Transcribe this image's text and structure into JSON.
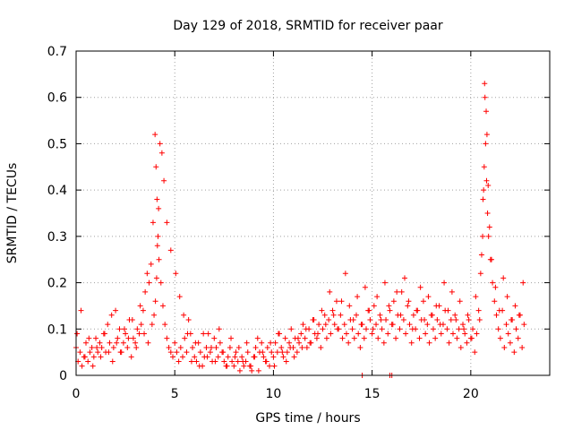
{
  "chart_data": {
    "type": "scatter",
    "title": "Day 129 of 2018, SRMTID for receiver paar",
    "xlabel": "GPS time / hours",
    "ylabel": "SRMTID / TECUs",
    "xlim": [
      0,
      24
    ],
    "ylim": [
      0,
      0.7
    ],
    "x_ticks": [
      0,
      5,
      10,
      15,
      20
    ],
    "x_tick_labels": [
      "0",
      "5",
      "10",
      "15",
      "20"
    ],
    "y_ticks": [
      0,
      0.1,
      0.2,
      0.3,
      0.4,
      0.5,
      0.6,
      0.7
    ],
    "y_tick_labels": [
      "0",
      "0.1",
      "0.2",
      "0.3",
      "0.4",
      "0.5",
      "0.6",
      "0.7"
    ],
    "grid": true,
    "marker": "+",
    "series": [
      {
        "name": "SRMTID",
        "color": "#ff0000",
        "x": [
          0.0,
          0.1,
          0.2,
          0.3,
          0.4,
          0.5,
          0.6,
          0.7,
          0.8,
          0.9,
          1.0,
          1.1,
          1.2,
          1.3,
          1.4,
          1.5,
          1.6,
          1.7,
          1.8,
          1.9,
          2.0,
          2.1,
          2.2,
          2.3,
          2.4,
          2.5,
          2.6,
          2.7,
          2.8,
          2.9,
          3.0,
          3.1,
          3.2,
          3.3,
          3.4,
          3.5,
          3.6,
          3.7,
          3.8,
          3.9,
          4.0,
          4.05,
          4.1,
          4.15,
          4.2,
          4.3,
          4.4,
          4.5,
          4.6,
          4.7,
          4.8,
          4.9,
          5.0,
          5.1,
          5.2,
          5.3,
          5.4,
          5.5,
          5.6,
          5.7,
          5.8,
          5.9,
          6.0,
          6.1,
          6.2,
          6.3,
          6.4,
          6.5,
          6.6,
          6.7,
          6.8,
          6.9,
          7.0,
          7.1,
          7.2,
          7.3,
          7.4,
          7.5,
          7.6,
          7.7,
          7.8,
          7.9,
          8.0,
          8.1,
          8.2,
          8.3,
          8.4,
          8.5,
          8.6,
          8.7,
          8.8,
          8.9,
          9.0,
          9.1,
          9.2,
          9.3,
          9.4,
          9.5,
          9.6,
          9.7,
          9.8,
          9.9,
          10.0,
          10.1,
          10.2,
          10.3,
          10.4,
          10.5,
          10.6,
          10.7,
          10.8,
          10.9,
          11.0,
          11.1,
          11.2,
          11.3,
          11.4,
          11.5,
          11.6,
          11.7,
          11.8,
          11.9,
          12.0,
          12.1,
          12.2,
          12.3,
          12.4,
          12.5,
          12.6,
          12.7,
          12.8,
          12.9,
          13.0,
          13.1,
          13.2,
          13.3,
          13.4,
          13.5,
          13.6,
          13.7,
          13.8,
          13.9,
          14.0,
          14.1,
          14.2,
          14.3,
          14.4,
          14.5,
          14.6,
          14.7,
          14.8,
          14.9,
          15.0,
          15.1,
          15.2,
          15.3,
          15.4,
          15.5,
          15.6,
          15.7,
          15.8,
          15.9,
          16.0,
          16.1,
          16.2,
          16.3,
          16.4,
          16.5,
          16.6,
          16.7,
          16.8,
          16.9,
          17.0,
          17.1,
          17.2,
          17.3,
          17.4,
          17.5,
          17.6,
          17.7,
          17.8,
          17.9,
          18.0,
          18.1,
          18.2,
          18.3,
          18.4,
          18.5,
          18.6,
          18.7,
          18.8,
          18.9,
          19.0,
          19.1,
          19.2,
          19.3,
          19.4,
          19.5,
          19.6,
          19.7,
          19.8,
          19.9,
          20.0,
          20.1,
          20.2,
          20.3,
          20.4,
          20.5,
          20.6,
          20.65,
          20.7,
          20.75,
          20.8,
          20.85,
          20.9,
          21.0,
          21.1,
          21.2,
          21.3,
          21.4,
          21.5,
          21.6,
          21.7,
          21.8,
          21.9,
          22.0,
          22.1,
          22.2,
          22.3,
          22.4,
          22.5,
          22.6,
          22.7,
          0.05,
          0.25,
          0.45,
          0.65,
          0.85,
          1.05,
          1.25,
          1.45,
          1.65,
          1.85,
          2.05,
          2.25,
          2.45,
          2.65,
          2.85,
          3.05,
          3.25,
          3.45,
          3.65,
          3.85,
          3.95,
          4.02,
          4.08,
          4.12,
          4.18,
          4.25,
          4.35,
          4.45,
          4.6,
          4.8,
          5.05,
          5.25,
          5.45,
          5.65,
          5.85,
          6.05,
          6.25,
          6.45,
          6.65,
          6.85,
          7.05,
          7.25,
          7.45,
          7.65,
          7.85,
          8.05,
          8.25,
          8.45,
          8.65,
          8.85,
          9.05,
          9.25,
          9.45,
          9.65,
          9.85,
          10.05,
          10.25,
          10.45,
          10.65,
          10.85,
          11.05,
          11.25,
          11.45,
          11.65,
          11.85,
          12.05,
          12.25,
          12.45,
          12.65,
          12.85,
          13.05,
          13.25,
          13.45,
          13.65,
          13.85,
          14.05,
          14.25,
          14.45,
          14.65,
          14.85,
          15.05,
          15.25,
          15.45,
          15.65,
          15.85,
          16.05,
          16.25,
          16.45,
          16.65,
          16.85,
          17.05,
          17.25,
          17.45,
          17.65,
          17.85,
          18.05,
          18.25,
          18.45,
          18.65,
          18.85,
          19.05,
          19.25,
          19.45,
          19.65,
          19.85,
          20.05,
          20.25,
          20.45,
          20.55,
          20.62,
          20.68,
          20.72,
          20.78,
          20.82,
          20.88,
          20.95,
          21.05,
          21.25,
          21.45,
          21.65,
          21.85,
          22.05,
          22.25,
          22.45,
          22.65,
          14.5,
          15.9,
          16.0
        ],
        "y": [
          0.06,
          0.03,
          0.05,
          0.02,
          0.04,
          0.07,
          0.03,
          0.05,
          0.06,
          0.04,
          0.08,
          0.05,
          0.07,
          0.06,
          0.09,
          0.05,
          0.11,
          0.07,
          0.13,
          0.06,
          0.14,
          0.08,
          0.1,
          0.05,
          0.07,
          0.09,
          0.06,
          0.12,
          0.04,
          0.08,
          0.07,
          0.1,
          0.09,
          0.11,
          0.14,
          0.18,
          0.22,
          0.2,
          0.24,
          0.33,
          0.52,
          0.45,
          0.38,
          0.3,
          0.25,
          0.2,
          0.15,
          0.11,
          0.08,
          0.06,
          0.05,
          0.04,
          0.07,
          0.05,
          0.03,
          0.06,
          0.04,
          0.08,
          0.05,
          0.12,
          0.09,
          0.06,
          0.04,
          0.03,
          0.07,
          0.05,
          0.02,
          0.04,
          0.06,
          0.09,
          0.05,
          0.03,
          0.08,
          0.06,
          0.04,
          0.07,
          0.05,
          0.03,
          0.02,
          0.04,
          0.06,
          0.03,
          0.02,
          0.05,
          0.03,
          0.01,
          0.04,
          0.02,
          0.03,
          0.05,
          0.02,
          0.01,
          0.04,
          0.06,
          0.08,
          0.05,
          0.07,
          0.04,
          0.03,
          0.06,
          0.02,
          0.05,
          0.04,
          0.07,
          0.05,
          0.09,
          0.06,
          0.04,
          0.08,
          0.05,
          0.07,
          0.1,
          0.06,
          0.08,
          0.05,
          0.07,
          0.09,
          0.11,
          0.08,
          0.06,
          0.1,
          0.07,
          0.12,
          0.09,
          0.08,
          0.11,
          0.06,
          0.1,
          0.13,
          0.08,
          0.12,
          0.09,
          0.14,
          0.11,
          0.16,
          0.1,
          0.13,
          0.08,
          0.11,
          0.09,
          0.07,
          0.12,
          0.1,
          0.08,
          0.13,
          0.09,
          0.06,
          0.11,
          0.08,
          0.1,
          0.14,
          0.12,
          0.09,
          0.15,
          0.11,
          0.08,
          0.13,
          0.1,
          0.07,
          0.12,
          0.09,
          0.14,
          0.11,
          0.16,
          0.08,
          0.13,
          0.1,
          0.18,
          0.12,
          0.09,
          0.15,
          0.11,
          0.07,
          0.13,
          0.1,
          0.14,
          0.08,
          0.12,
          0.16,
          0.09,
          0.11,
          0.07,
          0.13,
          0.1,
          0.08,
          0.12,
          0.15,
          0.09,
          0.11,
          0.14,
          0.1,
          0.07,
          0.12,
          0.09,
          0.13,
          0.08,
          0.1,
          0.06,
          0.11,
          0.09,
          0.07,
          0.12,
          0.08,
          0.1,
          0.05,
          0.09,
          0.14,
          0.22,
          0.3,
          0.4,
          0.63,
          0.5,
          0.42,
          0.35,
          0.3,
          0.25,
          0.2,
          0.16,
          0.13,
          0.1,
          0.08,
          0.14,
          0.06,
          0.11,
          0.09,
          0.07,
          0.12,
          0.05,
          0.1,
          0.08,
          0.13,
          0.06,
          0.11,
          0.09,
          0.14,
          0.04,
          0.08,
          0.02,
          0.06,
          0.04,
          0.09,
          0.05,
          0.03,
          0.07,
          0.05,
          0.1,
          0.08,
          0.12,
          0.06,
          0.15,
          0.09,
          0.07,
          0.11,
          0.13,
          0.16,
          0.21,
          0.28,
          0.36,
          0.5,
          0.48,
          0.42,
          0.33,
          0.27,
          0.22,
          0.17,
          0.13,
          0.09,
          0.03,
          0.07,
          0.02,
          0.09,
          0.04,
          0.06,
          0.03,
          0.1,
          0.05,
          0.02,
          0.08,
          0.04,
          0.06,
          0.03,
          0.07,
          0.02,
          0.04,
          0.01,
          0.05,
          0.03,
          0.07,
          0.02,
          0.09,
          0.05,
          0.03,
          0.06,
          0.04,
          0.08,
          0.06,
          0.1,
          0.07,
          0.12,
          0.09,
          0.14,
          0.11,
          0.18,
          0.13,
          0.1,
          0.16,
          0.22,
          0.15,
          0.12,
          0.17,
          0.11,
          0.19,
          0.14,
          0.1,
          0.17,
          0.12,
          0.2,
          0.15,
          0.11,
          0.18,
          0.13,
          0.21,
          0.16,
          0.1,
          0.14,
          0.19,
          0.12,
          0.17,
          0.13,
          0.15,
          0.11,
          0.2,
          0.14,
          0.18,
          0.12,
          0.16,
          0.1,
          0.13,
          0.08,
          0.17,
          0.12,
          0.26,
          0.38,
          0.45,
          0.6,
          0.57,
          0.52,
          0.41,
          0.32,
          0.25,
          0.19,
          0.14,
          0.21,
          0.17,
          0.12,
          0.15,
          0.13,
          0.2,
          0.0,
          0.0,
          0.0
        ]
      }
    ]
  }
}
